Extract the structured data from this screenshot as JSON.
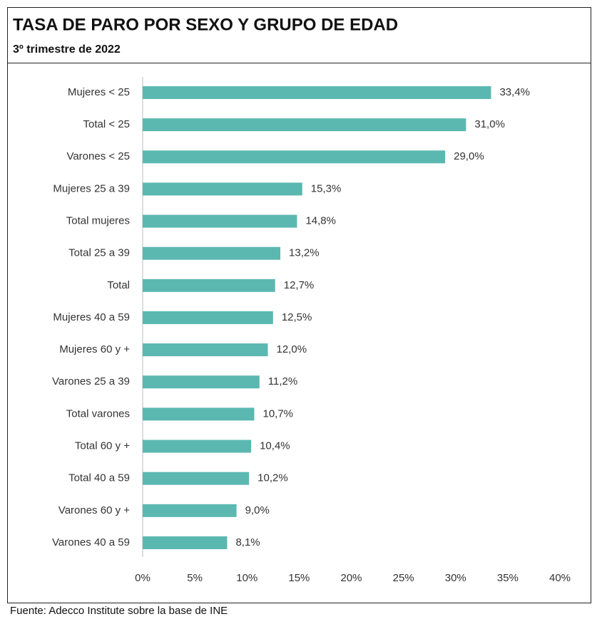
{
  "chart_data": {
    "type": "bar",
    "orientation": "horizontal",
    "title": "TASA DE PARO POR SEXO Y GRUPO DE EDAD",
    "subtitle": "3º trimestre de 2022",
    "source": "Fuente: Adecco Institute sobre la base de INE",
    "categories": [
      "Mujeres < 25",
      "Total < 25",
      "Varones < 25",
      "Mujeres 25 a 39",
      "Total mujeres",
      "Total 25 a 39",
      "Total",
      "Mujeres 40 a 59",
      "Mujeres 60 y +",
      "Varones 25 a 39",
      "Total varones",
      "Total 60 y +",
      "Total 40 a 59",
      "Varones 60 y +",
      "Varones 40 a 59"
    ],
    "values": [
      33.4,
      31.0,
      29.0,
      15.3,
      14.8,
      13.2,
      12.7,
      12.5,
      12.0,
      11.2,
      10.7,
      10.4,
      10.2,
      9.0,
      8.1
    ],
    "value_labels": [
      "33,4%",
      "31,0%",
      "29,0%",
      "15,3%",
      "14,8%",
      "13,2%",
      "12,7%",
      "12,5%",
      "12,0%",
      "11,2%",
      "10,7%",
      "10,4%",
      "10,2%",
      "9,0%",
      "8,1%"
    ],
    "color": "#5bb8b0",
    "xlim": [
      0,
      40
    ],
    "xticks": [
      {
        "value": 0,
        "label": "0%"
      },
      {
        "value": 5,
        "label": "5%"
      },
      {
        "value": 10,
        "label": "10%"
      },
      {
        "value": 15,
        "label": "15%"
      },
      {
        "value": 20,
        "label": "20%"
      },
      {
        "value": 25,
        "label": "25%"
      },
      {
        "value": 30,
        "label": "30%"
      },
      {
        "value": 35,
        "label": "35%"
      },
      {
        "value": 40,
        "label": "40%"
      }
    ],
    "grid": false
  }
}
